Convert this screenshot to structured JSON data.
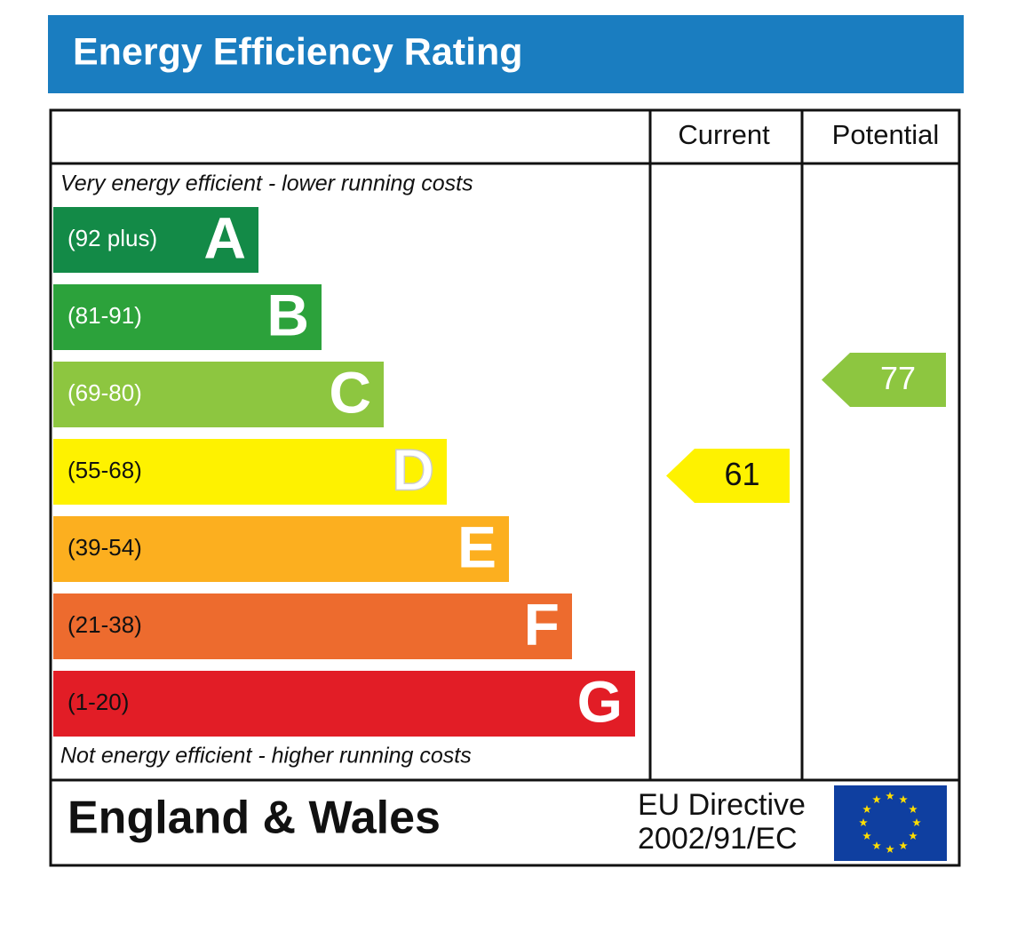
{
  "header": {
    "title": "Energy Efficiency Rating"
  },
  "columns": [
    "Current",
    "Potential"
  ],
  "top_note": "Very energy efficient - lower running costs",
  "bottom_note": "Not energy efficient - higher running costs",
  "bands": [
    {
      "range": "(92 plus)",
      "letter": "A",
      "color": "#138a47"
    },
    {
      "range": "(81-91)",
      "letter": "B",
      "color": "#2ca23b"
    },
    {
      "range": "(69-80)",
      "letter": "C",
      "color": "#8dc640"
    },
    {
      "range": "(55-68)",
      "letter": "D",
      "color": "#fef200"
    },
    {
      "range": "(39-54)",
      "letter": "E",
      "color": "#fcaf1f"
    },
    {
      "range": "(21-38)",
      "letter": "F",
      "color": "#ed6b2e"
    },
    {
      "range": "(1-20)",
      "letter": "G",
      "color": "#e21d26"
    }
  ],
  "current": {
    "value": 61,
    "color": "#fef200"
  },
  "potential": {
    "value": 77,
    "color": "#8dc640"
  },
  "footer": {
    "region": "England & Wales",
    "directive": [
      "EU Directive",
      "2002/91/EC"
    ]
  }
}
